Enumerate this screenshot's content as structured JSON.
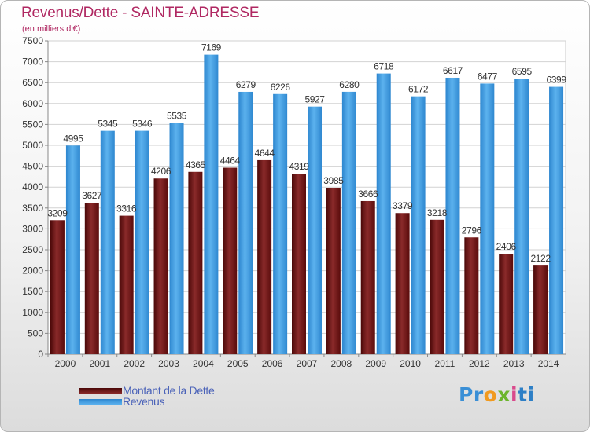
{
  "chart_data": {
    "type": "bar",
    "title": "Revenus/Dette - SAINTE-ADRESSE",
    "subtitle": "(en milliers d'€)",
    "categories": [
      "2000",
      "2001",
      "2002",
      "2003",
      "2004",
      "2005",
      "2006",
      "2007",
      "2008",
      "2009",
      "2010",
      "2011",
      "2012",
      "2013",
      "2014"
    ],
    "series": [
      {
        "name": "Montant de la Dette",
        "values": [
          3209,
          3627,
          3316,
          4206,
          4365,
          4464,
          4644,
          4319,
          3985,
          3666,
          3379,
          3218,
          2796,
          2406,
          2122
        ],
        "labels": [
          "3209",
          "3627",
          "3316",
          "4206",
          "4365",
          "4464",
          "4644",
          "4319",
          "3985",
          "3666",
          "3379",
          "3218",
          "2796",
          "2406",
          "2122"
        ],
        "color": "#7a1a1a"
      },
      {
        "name": "Revenus",
        "values": [
          4995,
          5345,
          5346,
          5535,
          7169,
          6279,
          6226,
          5927,
          6280,
          6718,
          6172,
          6617,
          6477,
          6595,
          6399
        ],
        "labels": [
          "4995",
          "5345",
          "5346",
          "5535",
          "7169",
          "6279",
          "6226",
          "5927",
          "6280",
          "6718",
          "6172",
          "6617",
          "6477",
          "6595",
          "6399"
        ],
        "color": "#3b98dd"
      }
    ],
    "xlabel": "",
    "ylabel": "",
    "ylim": [
      0,
      7500
    ],
    "yticks": [
      "0",
      "500",
      "1000",
      "1500",
      "2000",
      "2500",
      "3000",
      "3500",
      "4000",
      "4500",
      "5000",
      "5500",
      "6000",
      "6500",
      "7000",
      "7500"
    ],
    "grid": true,
    "legend_position": "bottom-left"
  },
  "watermark": {
    "parts": [
      "Pr",
      "o",
      "x",
      "i",
      "ti"
    ]
  }
}
